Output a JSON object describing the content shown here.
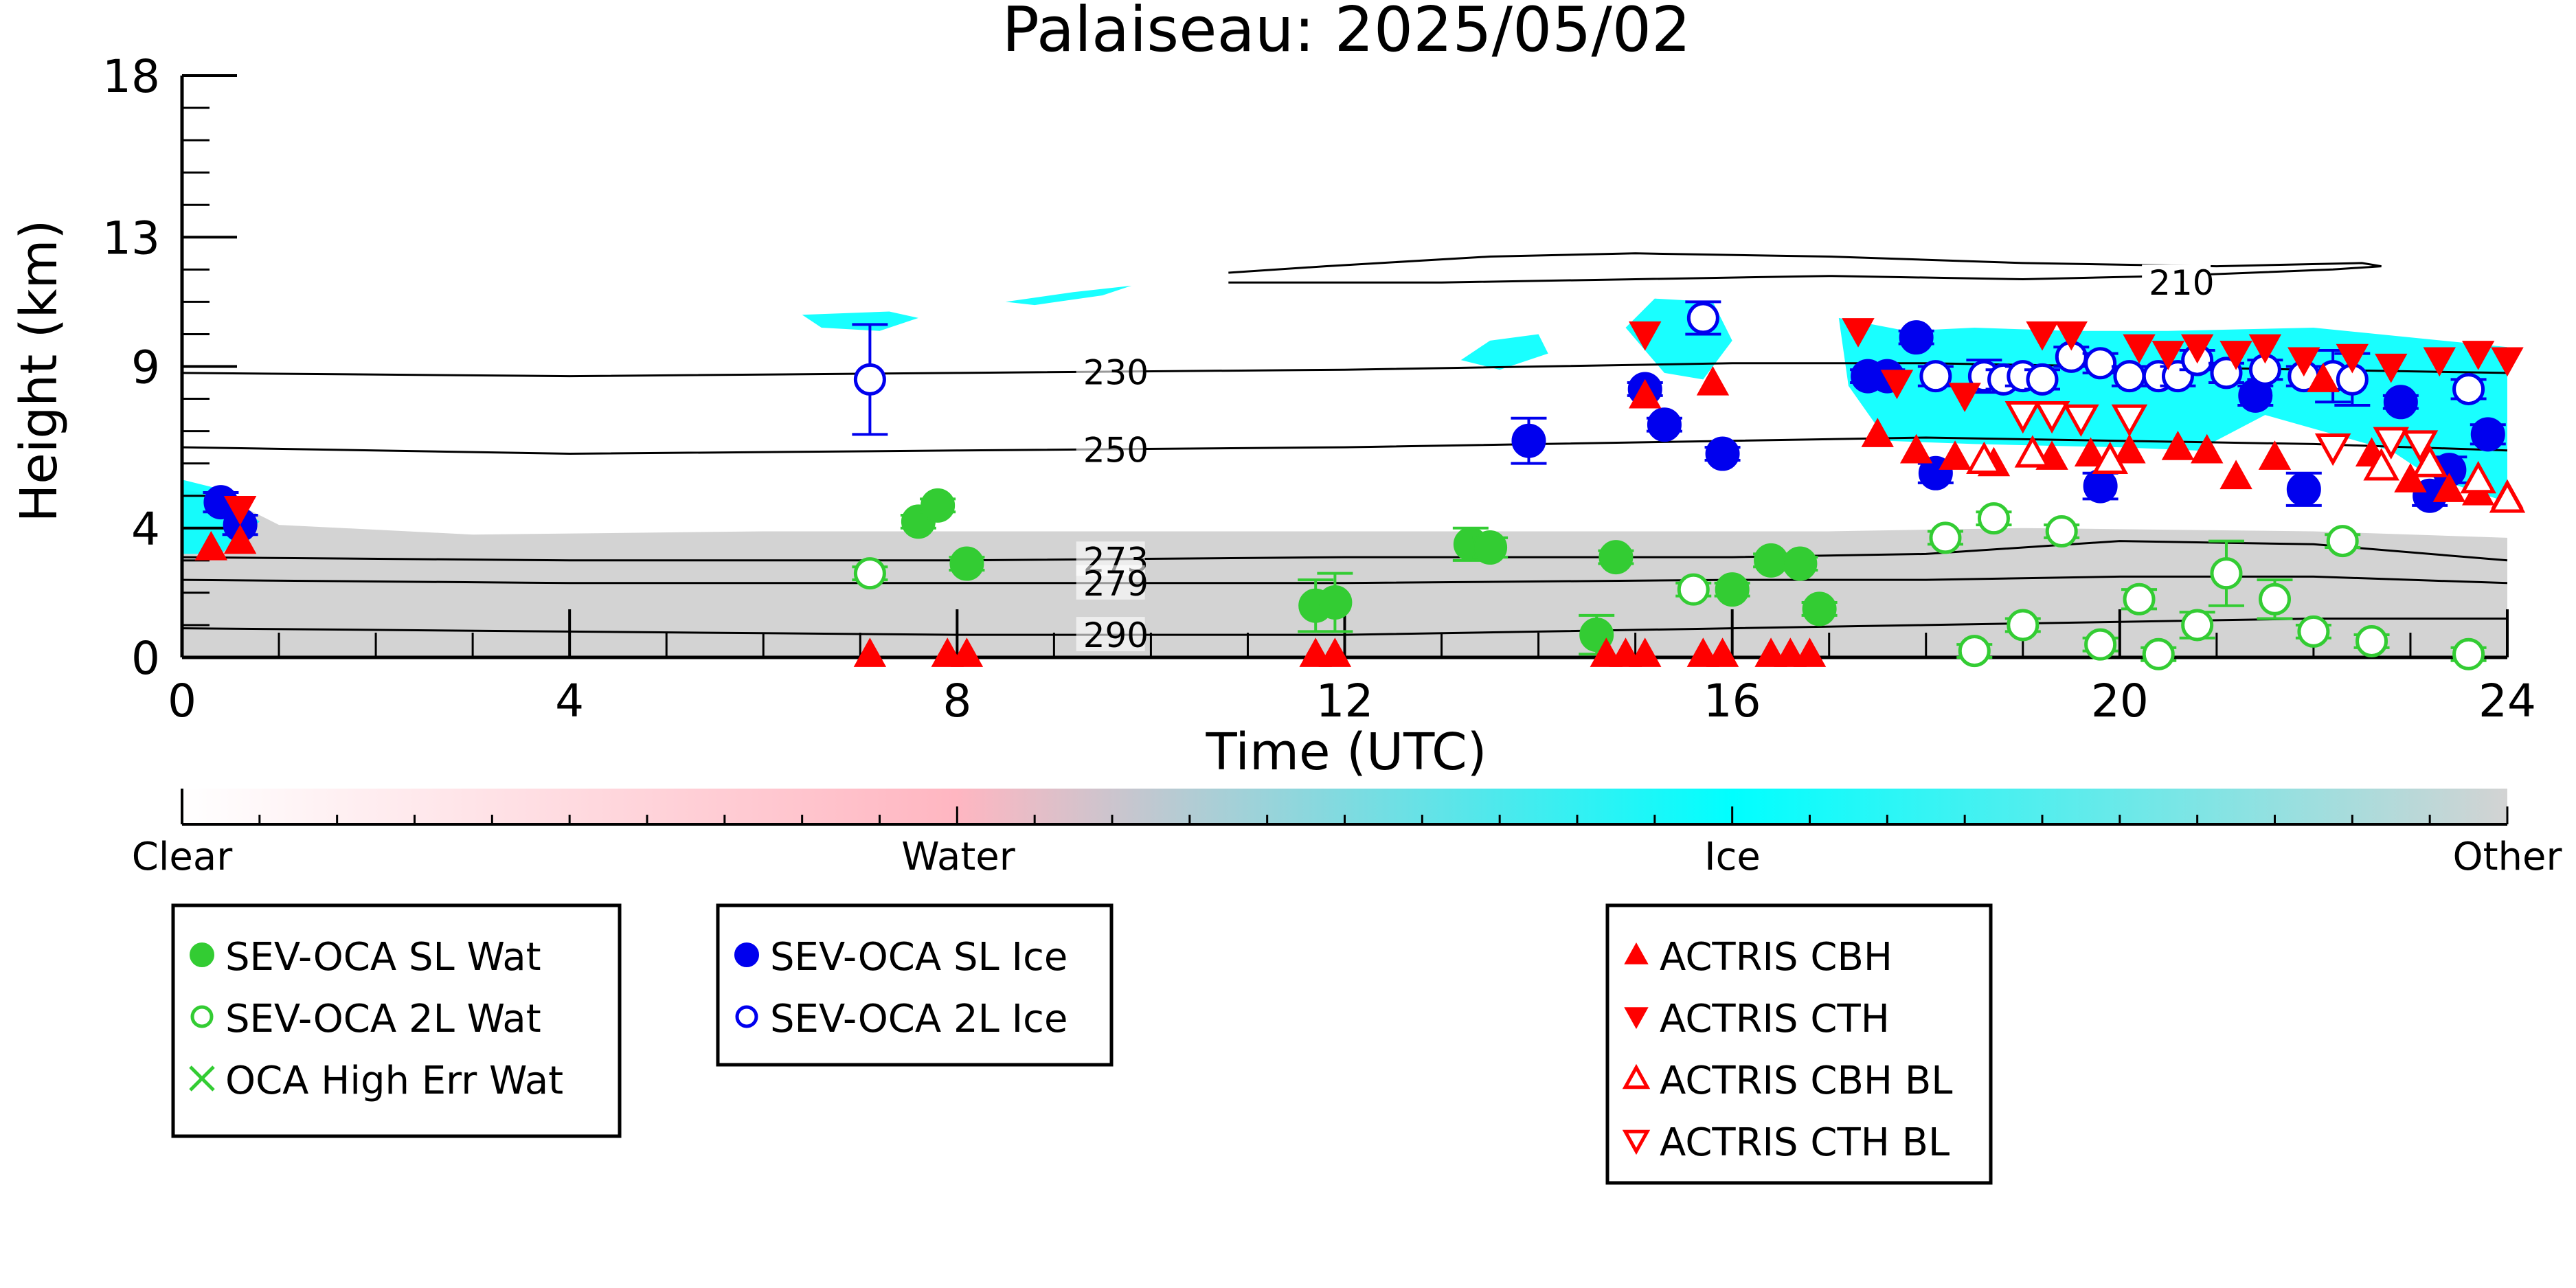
{
  "chart_data": {
    "type": "scatter",
    "title": "Palaiseau: 2025/05/02",
    "xlabel": "Time (UTC)",
    "ylabel": "Height (km)",
    "xlim": [
      0,
      24
    ],
    "ylim": [
      0,
      18
    ],
    "xticks": [
      0,
      4,
      8,
      12,
      16,
      20,
      24
    ],
    "yticks": [
      0,
      4,
      9,
      13,
      18
    ],
    "grid": false,
    "colorbar": {
      "labels": [
        "Clear",
        "Water",
        "Ice",
        "Other"
      ],
      "colors": [
        "#ffffff",
        "#ffb6c1",
        "#00ffff",
        "#d3d3d3"
      ]
    },
    "contours": [
      {
        "label": "210",
        "points": [
          [
            10.8,
            11.9
          ],
          [
            11.8,
            12.1
          ],
          [
            13.5,
            12.4
          ],
          [
            15.0,
            12.5
          ],
          [
            17.0,
            12.4
          ],
          [
            19.0,
            12.2
          ],
          [
            21.0,
            12.1
          ],
          [
            22.5,
            12.2
          ],
          [
            22.7,
            12.1
          ],
          [
            22.2,
            12.0
          ],
          [
            20.5,
            11.8
          ],
          [
            19.0,
            11.7
          ],
          [
            17.0,
            11.8
          ],
          [
            15.0,
            11.7
          ],
          [
            13.0,
            11.6
          ],
          [
            10.8,
            11.6
          ]
        ]
      },
      {
        "label": "230",
        "points": [
          [
            0,
            8.8
          ],
          [
            4,
            8.7
          ],
          [
            8,
            8.8
          ],
          [
            12,
            8.9
          ],
          [
            16,
            9.1
          ],
          [
            18,
            9.1
          ],
          [
            20,
            9.0
          ],
          [
            22,
            8.9
          ],
          [
            24,
            8.8
          ]
        ]
      },
      {
        "label": "250",
        "points": [
          [
            0,
            6.5
          ],
          [
            4,
            6.3
          ],
          [
            8,
            6.4
          ],
          [
            12,
            6.5
          ],
          [
            16,
            6.7
          ],
          [
            18,
            6.8
          ],
          [
            20,
            6.7
          ],
          [
            22,
            6.6
          ],
          [
            24,
            6.4
          ]
        ]
      },
      {
        "label": "273",
        "points": [
          [
            0,
            3.1
          ],
          [
            4,
            3.0
          ],
          [
            8,
            3.0
          ],
          [
            12,
            3.1
          ],
          [
            16,
            3.1
          ],
          [
            18,
            3.2
          ],
          [
            20,
            3.6
          ],
          [
            22,
            3.5
          ],
          [
            24,
            3.0
          ]
        ]
      },
      {
        "label": "279",
        "points": [
          [
            0,
            2.4
          ],
          [
            4,
            2.3
          ],
          [
            8,
            2.3
          ],
          [
            12,
            2.3
          ],
          [
            16,
            2.4
          ],
          [
            18,
            2.4
          ],
          [
            20,
            2.5
          ],
          [
            22,
            2.5
          ],
          [
            24,
            2.3
          ]
        ]
      },
      {
        "label": "290",
        "points": [
          [
            0,
            0.9
          ],
          [
            4,
            0.8
          ],
          [
            8,
            0.7
          ],
          [
            12,
            0.7
          ],
          [
            14,
            0.8
          ],
          [
            16,
            0.9
          ],
          [
            18,
            1.0
          ],
          [
            20,
            1.1
          ],
          [
            22,
            1.2
          ],
          [
            24,
            1.2
          ]
        ]
      }
    ],
    "cloud_regions": [
      {
        "type": "other",
        "points": [
          [
            0,
            0
          ],
          [
            0,
            5.2
          ],
          [
            0.4,
            5.0
          ],
          [
            1.0,
            4.1
          ],
          [
            3,
            3.8
          ],
          [
            6,
            3.9
          ],
          [
            9,
            3.9
          ],
          [
            12,
            3.9
          ],
          [
            15,
            3.9
          ],
          [
            17,
            3.9
          ],
          [
            19,
            4.0
          ],
          [
            22,
            3.9
          ],
          [
            24,
            3.7
          ],
          [
            24,
            0
          ]
        ]
      },
      {
        "type": "ice",
        "points": [
          [
            0,
            3.2
          ],
          [
            0,
            5.5
          ],
          [
            0.4,
            5.2
          ],
          [
            0.8,
            4.2
          ],
          [
            0.4,
            3.2
          ]
        ]
      },
      {
        "type": "ice",
        "points": [
          [
            6.4,
            10.6
          ],
          [
            6.6,
            10.2
          ],
          [
            7.2,
            10.1
          ],
          [
            7.6,
            10.5
          ],
          [
            7.3,
            10.7
          ]
        ]
      },
      {
        "type": "ice",
        "points": [
          [
            8.5,
            11.0
          ],
          [
            9.2,
            11.3
          ],
          [
            9.8,
            11.5
          ],
          [
            9.5,
            11.2
          ],
          [
            8.8,
            10.9
          ]
        ]
      },
      {
        "type": "ice",
        "points": [
          [
            13.2,
            9.2
          ],
          [
            13.5,
            9.8
          ],
          [
            14.0,
            10.0
          ],
          [
            14.1,
            9.4
          ],
          [
            13.6,
            8.9
          ]
        ]
      },
      {
        "type": "ice",
        "points": [
          [
            14.9,
            10.2
          ],
          [
            15.2,
            11.1
          ],
          [
            15.8,
            11.0
          ],
          [
            16.0,
            9.8
          ],
          [
            15.7,
            8.6
          ],
          [
            15.3,
            8.8
          ]
        ]
      },
      {
        "type": "ice",
        "points": [
          [
            17.1,
            10.5
          ],
          [
            17.8,
            10.1
          ],
          [
            18.5,
            10.2
          ],
          [
            19.5,
            10.1
          ],
          [
            20.5,
            10.1
          ],
          [
            22,
            10.2
          ],
          [
            24,
            9.6
          ],
          [
            24,
            4.8
          ],
          [
            23.2,
            5.6
          ],
          [
            22.8,
            6.4
          ],
          [
            21.5,
            7.5
          ],
          [
            20.8,
            6.4
          ],
          [
            20.0,
            6.5
          ],
          [
            18.5,
            6.6
          ],
          [
            17.6,
            6.7
          ],
          [
            17.2,
            8.4
          ]
        ]
      }
    ],
    "series": [
      {
        "name": "SEV-OCA SL Wat",
        "marker": "filled-circle",
        "color": "#33cc33",
        "points": [
          [
            7.6,
            4.2
          ],
          [
            7.8,
            4.7
          ],
          [
            8.1,
            2.9
          ],
          [
            11.7,
            1.6
          ],
          [
            11.9,
            1.7
          ],
          [
            13.3,
            3.5
          ],
          [
            13.5,
            3.4
          ],
          [
            14.6,
            0.7
          ],
          [
            14.8,
            3.1
          ],
          [
            16.0,
            2.1
          ],
          [
            16.4,
            3.0
          ],
          [
            16.7,
            2.9
          ],
          [
            16.9,
            1.5
          ]
        ],
        "errors": [
          0.2,
          0.2,
          0.2,
          0.8,
          0.9,
          0.5,
          0.3,
          0.6,
          0.2,
          0.2,
          0.2,
          0.2,
          0.2
        ]
      },
      {
        "name": "SEV-OCA 2L Wat",
        "marker": "open-circle",
        "color": "#33cc33",
        "points": [
          [
            7.1,
            2.6
          ],
          [
            15.6,
            2.1
          ],
          [
            18.2,
            3.7
          ],
          [
            18.5,
            0.2
          ],
          [
            18.7,
            4.3
          ],
          [
            19.0,
            1.0
          ],
          [
            19.4,
            3.9
          ],
          [
            19.8,
            0.4
          ],
          [
            20.2,
            1.8
          ],
          [
            20.4,
            0.1
          ],
          [
            20.8,
            1.0
          ],
          [
            21.1,
            2.6
          ],
          [
            21.6,
            1.8
          ],
          [
            22.0,
            0.8
          ],
          [
            22.3,
            3.6
          ],
          [
            22.6,
            0.5
          ],
          [
            23.6,
            0.1
          ]
        ],
        "errors": [
          0.2,
          0.2,
          0.2,
          0.2,
          0.2,
          0.2,
          0.2,
          0.2,
          0.3,
          0.2,
          0.4,
          1.0,
          0.6,
          0.2,
          0.2,
          0.2,
          0.2
        ]
      },
      {
        "name": "OCA High Err Wat",
        "marker": "x",
        "color": "#33cc33",
        "points": [],
        "errors": []
      },
      {
        "name": "SEV-OCA SL Ice",
        "marker": "filled-circle",
        "color": "#0000ee",
        "points": [
          [
            0.4,
            4.8
          ],
          [
            0.6,
            4.1
          ],
          [
            13.9,
            6.7
          ],
          [
            15.1,
            8.3
          ],
          [
            15.3,
            7.2
          ],
          [
            15.9,
            6.3
          ],
          [
            17.4,
            8.7
          ],
          [
            17.6,
            8.7
          ],
          [
            17.9,
            9.9
          ],
          [
            18.1,
            5.7
          ],
          [
            19.8,
            5.3
          ],
          [
            21.4,
            8.1
          ],
          [
            21.9,
            5.2
          ],
          [
            22.9,
            7.9
          ],
          [
            23.2,
            5.0
          ],
          [
            23.4,
            5.8
          ],
          [
            23.8,
            6.9
          ]
        ],
        "errors": [
          0.3,
          0.3,
          0.7,
          0.2,
          0.2,
          0.2,
          0.2,
          0.2,
          0.2,
          0.3,
          0.4,
          0.3,
          0.5,
          0.2,
          0.3,
          0.4,
          0.3
        ]
      },
      {
        "name": "SEV-OCA 2L Ice",
        "marker": "open-circle",
        "color": "#0000ee",
        "points": [
          [
            7.1,
            8.6
          ],
          [
            15.7,
            10.5
          ],
          [
            18.1,
            8.7
          ],
          [
            18.6,
            8.7
          ],
          [
            18.8,
            8.6
          ],
          [
            19.0,
            8.7
          ],
          [
            19.2,
            8.6
          ],
          [
            19.5,
            9.3
          ],
          [
            19.8,
            9.1
          ],
          [
            20.1,
            8.7
          ],
          [
            20.4,
            8.7
          ],
          [
            20.6,
            8.7
          ],
          [
            20.8,
            9.2
          ],
          [
            21.1,
            8.8
          ],
          [
            21.5,
            8.9
          ],
          [
            21.9,
            8.7
          ],
          [
            22.2,
            8.7
          ],
          [
            22.4,
            8.6
          ],
          [
            23.6,
            8.3
          ]
        ],
        "errors": [
          1.7,
          0.5,
          0.3,
          0.5,
          0.3,
          0.3,
          0.3,
          0.3,
          0.3,
          0.3,
          0.3,
          0.3,
          0.3,
          0.3,
          0.3,
          0.3,
          0.8,
          0.8,
          0.3
        ]
      },
      {
        "name": "ACTRIS CBH",
        "marker": "triangle-up",
        "color": "#ff0000",
        "points": [
          [
            0.3,
            3.4
          ],
          [
            0.6,
            3.6
          ],
          [
            7.1,
            0.1
          ],
          [
            7.9,
            0.1
          ],
          [
            8.1,
            0.1
          ],
          [
            11.7,
            0.1
          ],
          [
            11.9,
            0.1
          ],
          [
            14.7,
            0.1
          ],
          [
            14.9,
            0.1
          ],
          [
            15.1,
            0.1
          ],
          [
            15.7,
            0.1
          ],
          [
            15.9,
            0.1
          ],
          [
            16.4,
            0.1
          ],
          [
            16.6,
            0.1
          ],
          [
            16.8,
            0.1
          ],
          [
            15.1,
            8.1
          ],
          [
            15.8,
            8.5
          ],
          [
            17.5,
            6.9
          ],
          [
            17.9,
            6.4
          ],
          [
            18.3,
            6.2
          ],
          [
            18.7,
            6.0
          ],
          [
            19.3,
            6.2
          ],
          [
            19.7,
            6.3
          ],
          [
            20.1,
            6.4
          ],
          [
            20.6,
            6.5
          ],
          [
            20.9,
            6.4
          ],
          [
            21.2,
            5.6
          ],
          [
            21.6,
            6.2
          ],
          [
            22.1,
            8.6
          ],
          [
            22.6,
            6.3
          ],
          [
            23.0,
            5.5
          ],
          [
            23.4,
            5.2
          ],
          [
            23.7,
            5.1
          ],
          [
            24.0,
            5.0
          ]
        ]
      },
      {
        "name": "ACTRIS CTH",
        "marker": "triangle-down",
        "color": "#ff0000",
        "points": [
          [
            0.6,
            4.6
          ],
          [
            15.1,
            10.0
          ],
          [
            17.3,
            10.1
          ],
          [
            17.7,
            8.5
          ],
          [
            18.4,
            8.1
          ],
          [
            19.2,
            10.0
          ],
          [
            19.5,
            10.0
          ],
          [
            20.2,
            9.6
          ],
          [
            20.5,
            9.4
          ],
          [
            20.8,
            9.6
          ],
          [
            21.2,
            9.4
          ],
          [
            21.5,
            9.6
          ],
          [
            21.9,
            9.2
          ],
          [
            22.4,
            9.3
          ],
          [
            22.8,
            9.0
          ],
          [
            23.3,
            9.2
          ],
          [
            23.7,
            9.4
          ],
          [
            24.0,
            9.2
          ]
        ]
      },
      {
        "name": "ACTRIS CBH BL",
        "marker": "open-triangle-up",
        "color": "#ff0000",
        "points": [
          [
            18.6,
            6.1
          ],
          [
            19.1,
            6.3
          ],
          [
            19.9,
            6.1
          ],
          [
            22.7,
            5.9
          ],
          [
            23.2,
            6.0
          ],
          [
            23.7,
            5.5
          ],
          [
            24.0,
            4.9
          ]
        ]
      },
      {
        "name": "ACTRIS CTH BL",
        "marker": "open-triangle-down",
        "color": "#ff0000",
        "points": [
          [
            19.0,
            7.5
          ],
          [
            19.3,
            7.5
          ],
          [
            19.6,
            7.4
          ],
          [
            20.1,
            7.4
          ],
          [
            22.2,
            6.5
          ],
          [
            22.8,
            6.7
          ],
          [
            23.1,
            6.6
          ]
        ]
      }
    ]
  }
}
